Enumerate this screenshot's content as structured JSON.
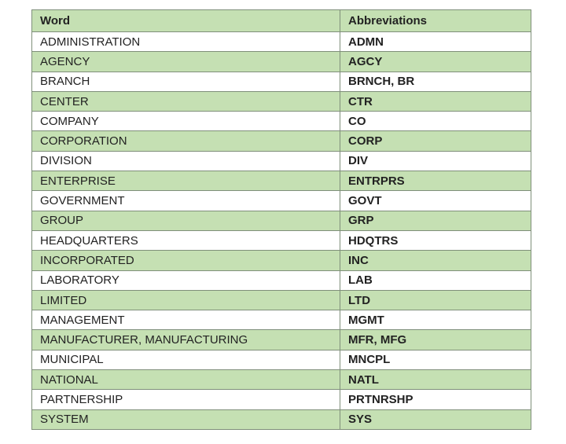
{
  "table": {
    "header": [
      "Word",
      "Abbreviations"
    ],
    "rows": [
      [
        "ADMINISTRATION",
        "ADMN"
      ],
      [
        "AGENCY",
        "AGCY"
      ],
      [
        "BRANCH",
        "BRNCH, BR"
      ],
      [
        "CENTER",
        "CTR"
      ],
      [
        "COMPANY",
        "CO"
      ],
      [
        "CORPORATION",
        "CORP"
      ],
      [
        "DIVISION",
        "DIV"
      ],
      [
        "ENTERPRISE",
        "ENTRPRS"
      ],
      [
        "GOVERNMENT",
        "GOVT"
      ],
      [
        "GROUP",
        "GRP"
      ],
      [
        "HEADQUARTERS",
        "HDQTRS"
      ],
      [
        "INCORPORATED",
        "INC"
      ],
      [
        "LABORATORY",
        "LAB"
      ],
      [
        "LIMITED",
        "LTD"
      ],
      [
        "MANAGEMENT",
        "MGMT"
      ],
      [
        "MANUFACTURER, MANUFACTURING",
        "MFR, MFG"
      ],
      [
        "MUNICIPAL",
        "MNCPL"
      ],
      [
        "NATIONAL",
        "NATL"
      ],
      [
        "PARTNERSHIP",
        "PRTNRSHP"
      ],
      [
        "SYSTEM",
        "SYS"
      ]
    ]
  }
}
